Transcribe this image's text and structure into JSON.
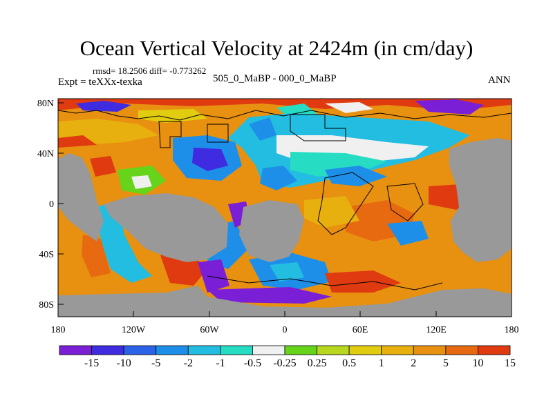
{
  "title": "Ocean Vertical Velocity at 2424m (in cm/day)",
  "stats": "rmsd= 18.2506 diff= -0.773262",
  "experiment": "Expt = teXXx-texka",
  "subtitle": "505_0_MaBP - 000_0_MaBP",
  "season": "ANN",
  "map": {
    "land_color": "#999999",
    "y_ticks": [
      {
        "lat": 80,
        "label": "80N"
      },
      {
        "lat": 40,
        "label": "40N"
      },
      {
        "lat": 0,
        "label": "0"
      },
      {
        "lat": -40,
        "label": "40S"
      },
      {
        "lat": -80,
        "label": "80S"
      }
    ],
    "x_ticks": [
      {
        "lon": -180,
        "label": "180"
      },
      {
        "lon": -120,
        "label": "120W"
      },
      {
        "lon": -60,
        "label": "60W"
      },
      {
        "lon": 0,
        "label": "0"
      },
      {
        "lon": 60,
        "label": "60E"
      },
      {
        "lon": 120,
        "label": "120E"
      },
      {
        "lon": 180,
        "label": "180"
      }
    ]
  },
  "colorbar": {
    "colors": [
      "#7a1fd6",
      "#3f2be0",
      "#2b63e8",
      "#1e8fe8",
      "#22bde0",
      "#26ddc4",
      "#f0f0f0",
      "#66d41a",
      "#b7d81e",
      "#e2cc10",
      "#e8b00e",
      "#e89010",
      "#e86a10",
      "#e03a10"
    ],
    "labels": [
      "-15",
      "-10",
      "-5",
      "-2",
      "-1",
      "-0.5",
      "-0.25",
      "0.25",
      "0.5",
      "1",
      "2",
      "5",
      "10",
      "15"
    ]
  }
}
